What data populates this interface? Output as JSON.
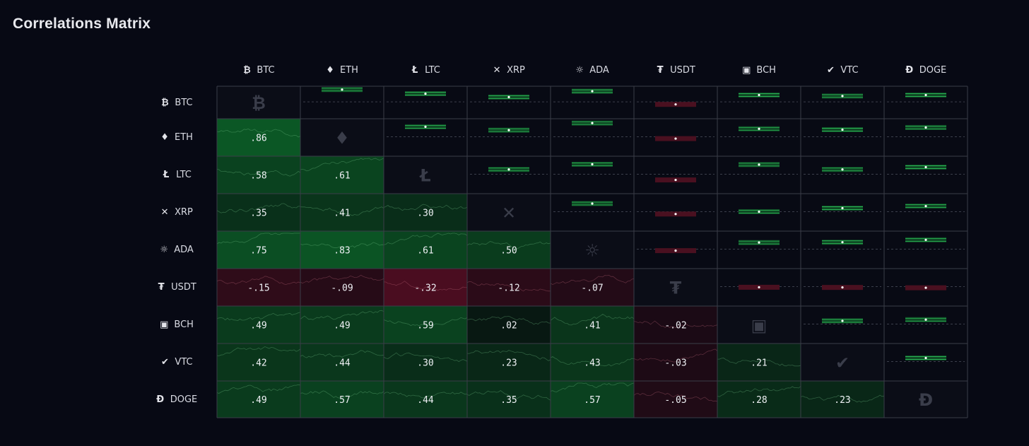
{
  "title": "Correlations Matrix",
  "assets": [
    {
      "symbol": "BTC",
      "icon": "bitcoin-icon",
      "glyph": "₿"
    },
    {
      "symbol": "ETH",
      "icon": "ethereum-icon",
      "glyph": "♦"
    },
    {
      "symbol": "LTC",
      "icon": "litecoin-icon",
      "glyph": "Ł"
    },
    {
      "symbol": "XRP",
      "icon": "xrp-icon",
      "glyph": "✕"
    },
    {
      "symbol": "ADA",
      "icon": "cardano-icon",
      "glyph": "☼"
    },
    {
      "symbol": "USDT",
      "icon": "tether-icon",
      "glyph": "₮"
    },
    {
      "symbol": "BCH",
      "icon": "bitcoin-cash-icon",
      "glyph": "▣"
    },
    {
      "symbol": "VTC",
      "icon": "vertcoin-icon",
      "glyph": "✔"
    },
    {
      "symbol": "DOGE",
      "icon": "dogecoin-icon",
      "glyph": "Ð"
    }
  ],
  "colors": {
    "positive": "#0b5a2a",
    "negative": "#4a0f20",
    "grid": "#3a3d48",
    "background": "#070914"
  },
  "chart_data": {
    "type": "heatmap",
    "title": "Correlations Matrix",
    "labels": [
      "BTC",
      "ETH",
      "LTC",
      "XRP",
      "ADA",
      "USDT",
      "BCH",
      "VTC",
      "DOGE"
    ],
    "labels_display": [
      [
        null,
        null,
        null,
        null,
        null,
        null,
        null,
        null,
        null
      ],
      [
        ".86",
        null,
        null,
        null,
        null,
        null,
        null,
        null,
        null
      ],
      [
        ".58",
        ".61",
        null,
        null,
        null,
        null,
        null,
        null,
        null
      ],
      [
        ".35",
        ".41",
        ".30",
        null,
        null,
        null,
        null,
        null,
        null
      ],
      [
        ".75",
        ".83",
        ".61",
        ".50",
        null,
        null,
        null,
        null,
        null
      ],
      [
        "-.15",
        "-.09",
        "-.32",
        "-.12",
        "-.07",
        null,
        null,
        null,
        null
      ],
      [
        ".49",
        ".49",
        ".59",
        ".02",
        ".41",
        "-.02",
        null,
        null,
        null
      ],
      [
        ".42",
        ".44",
        ".30",
        ".23",
        ".43",
        "-.03",
        ".21",
        null,
        null
      ],
      [
        ".49",
        ".57",
        ".44",
        ".35",
        ".57",
        "-.05",
        ".28",
        ".23",
        null
      ]
    ],
    "matrix_lower": [
      [
        null,
        null,
        null,
        null,
        null,
        null,
        null,
        null,
        null
      ],
      [
        0.86,
        null,
        null,
        null,
        null,
        null,
        null,
        null,
        null
      ],
      [
        0.58,
        0.61,
        null,
        null,
        null,
        null,
        null,
        null,
        null
      ],
      [
        0.35,
        0.41,
        0.3,
        null,
        null,
        null,
        null,
        null,
        null
      ],
      [
        0.75,
        0.83,
        0.61,
        0.5,
        null,
        null,
        null,
        null,
        null
      ],
      [
        -0.15,
        -0.09,
        -0.32,
        -0.12,
        -0.07,
        null,
        null,
        null,
        null
      ],
      [
        0.49,
        0.49,
        0.59,
        0.02,
        0.41,
        -0.02,
        null,
        null,
        null
      ],
      [
        0.42,
        0.44,
        0.3,
        0.23,
        0.43,
        -0.03,
        0.21,
        null,
        null
      ],
      [
        0.49,
        0.57,
        0.44,
        0.35,
        0.57,
        -0.05,
        0.28,
        0.23,
        null
      ]
    ],
    "range": [
      -1,
      1
    ]
  }
}
